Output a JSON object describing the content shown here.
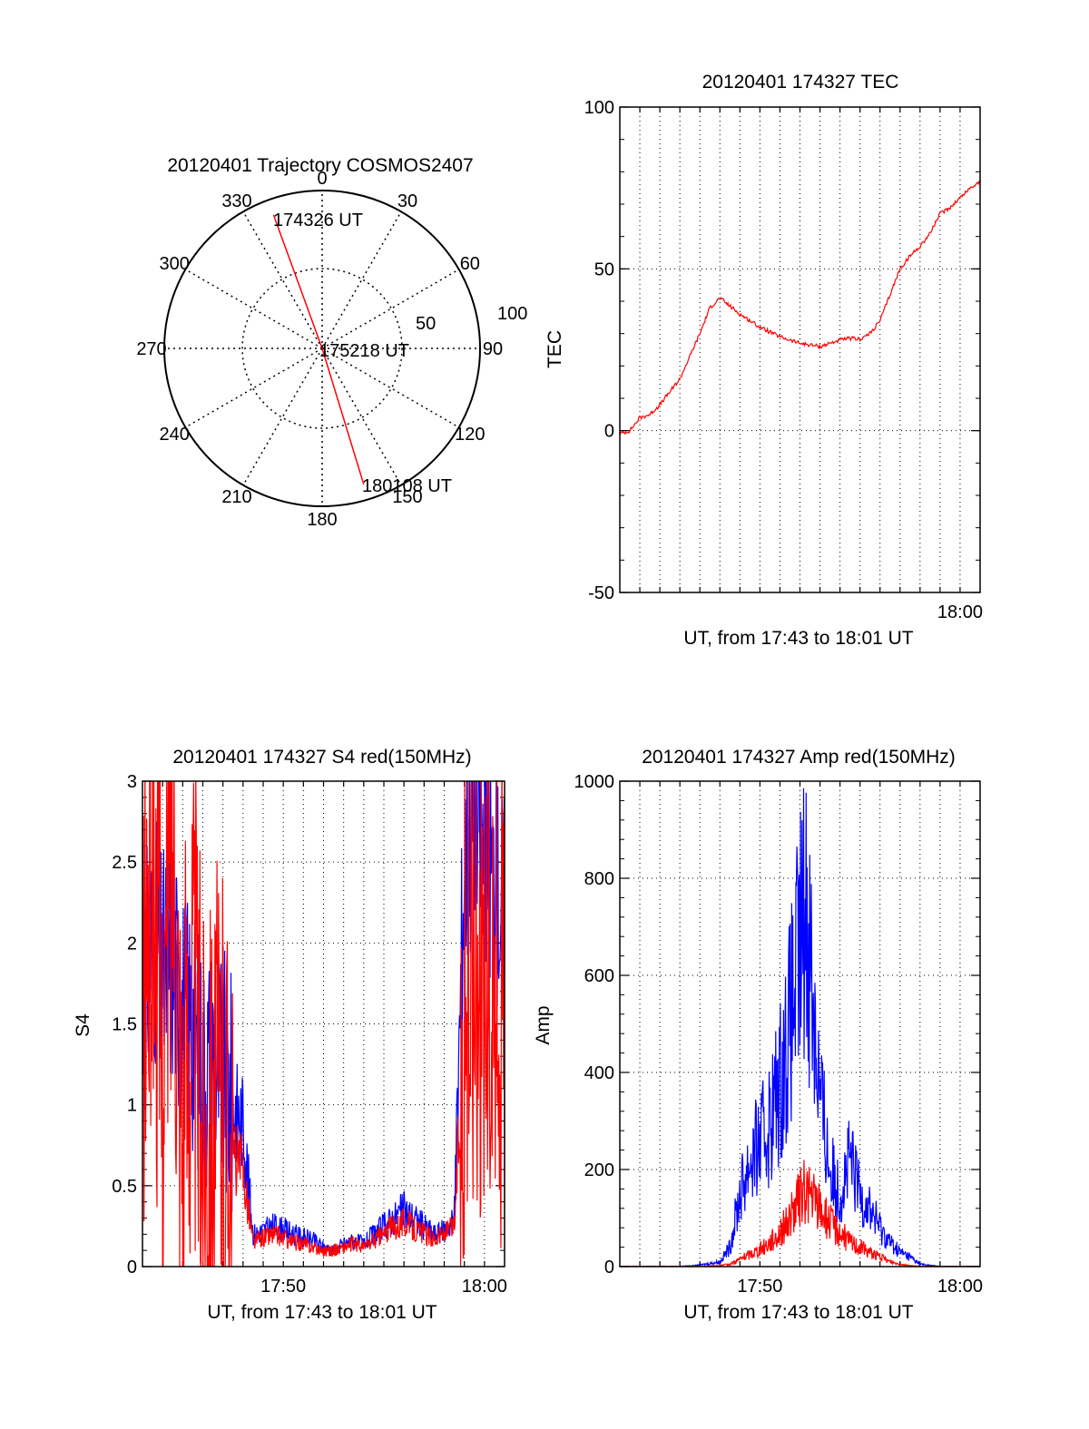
{
  "colors": {
    "red": "#ff0000",
    "blue": "#0000ff",
    "axis": "#000000",
    "grid": "#000000"
  },
  "chart_data": [
    {
      "id": "polar",
      "type": "polar",
      "title": "20120401 Trajectory COSMOS2407",
      "azimuth_labels": [
        "0",
        "30",
        "60",
        "90",
        "120",
        "150",
        "180",
        "210",
        "240",
        "270",
        "300",
        "330"
      ],
      "radial_labels": [
        "50",
        "100"
      ],
      "rlim": [
        0,
        100
      ],
      "grid": true,
      "trajectory": {
        "color": "red",
        "points": [
          {
            "time": "174326 UT",
            "azimuth": 340,
            "radius": 90
          },
          {
            "time": "175218 UT",
            "azimuth": 0,
            "radius": 0
          },
          {
            "time": "180108 UT",
            "azimuth": 163,
            "radius": 90
          }
        ]
      },
      "annotations": [
        "174326 UT",
        "175218 UT",
        "180108 UT"
      ]
    },
    {
      "id": "tec",
      "type": "line",
      "title": "20120401 174327 TEC",
      "xlabel": "UT, from 17:43 to 18:01 UT",
      "ylabel": "TEC",
      "xlim_minutes": [
        0,
        18
      ],
      "ylim": [
        -50,
        100
      ],
      "yticks": [
        "-50",
        "0",
        "50",
        "100"
      ],
      "xticks": [
        {
          "label": "18:00",
          "minute": 17
        }
      ],
      "grid": true,
      "series": [
        {
          "color": "red",
          "x": [
            0.0,
            0.5,
            1.0,
            1.5,
            2.0,
            2.5,
            3.0,
            3.5,
            4.0,
            4.5,
            5.0,
            6.0,
            7.0,
            8.0,
            9.0,
            9.5,
            10.0,
            10.5,
            11.0,
            11.5,
            12.0,
            12.5,
            13.0,
            13.5,
            14.0,
            14.5,
            15.0,
            15.5,
            16.0,
            16.5,
            17.0,
            17.5,
            18.0
          ],
          "y": [
            -1,
            0,
            4,
            5,
            8,
            12,
            16,
            23,
            30,
            38,
            41,
            36,
            32,
            29,
            27,
            26.5,
            26,
            27,
            28,
            28.5,
            28.3,
            30,
            34,
            42,
            50,
            54,
            57,
            61,
            67,
            69,
            72,
            75,
            77
          ]
        }
      ]
    },
    {
      "id": "s4",
      "type": "line",
      "title": "20120401 174327 S4 red(150MHz)",
      "xlabel": "UT, from 17:43 to 18:01 UT",
      "ylabel": "S4",
      "xlim_minutes": [
        0,
        18
      ],
      "ylim": [
        0,
        3
      ],
      "yticks": [
        "0",
        "0.5",
        "1",
        "1.5",
        "2",
        "2.5",
        "3"
      ],
      "xticks": [
        {
          "label": "17:50",
          "minute": 7
        },
        {
          "label": "18:00",
          "minute": 17
        }
      ],
      "grid": true,
      "series": [
        {
          "color": "blue",
          "x": [
            0.0,
            0.5,
            1.0,
            1.5,
            2.0,
            2.5,
            3.0,
            3.5,
            4.0,
            4.5,
            5.0,
            5.5,
            6.0,
            6.5,
            7.0,
            7.5,
            8.0,
            8.5,
            9.0,
            9.5,
            10.0,
            10.5,
            11.0,
            11.5,
            12.0,
            12.5,
            13.0,
            13.5,
            14.0,
            14.5,
            15.0,
            15.5,
            16.0,
            16.5,
            17.0,
            17.5,
            18.0
          ],
          "y": [
            1.6,
            2.1,
            1.8,
            1.9,
            1.6,
            1.5,
            1.2,
            1.3,
            1.2,
            1.0,
            0.9,
            0.2,
            0.22,
            0.25,
            0.23,
            0.2,
            0.18,
            0.16,
            0.12,
            0.1,
            0.14,
            0.16,
            0.14,
            0.2,
            0.25,
            0.3,
            0.35,
            0.3,
            0.25,
            0.2,
            0.22,
            0.3,
            2.5,
            2.8,
            2.6,
            2.4,
            2.2
          ]
        },
        {
          "color": "red",
          "x": [
            0.0,
            0.5,
            1.0,
            1.5,
            2.0,
            2.5,
            3.0,
            3.5,
            4.0,
            4.5,
            5.0,
            5.5,
            6.0,
            6.5,
            7.0,
            7.5,
            8.0,
            8.5,
            9.0,
            9.5,
            10.0,
            10.5,
            11.0,
            11.5,
            12.0,
            12.5,
            13.0,
            13.5,
            14.0,
            14.5,
            15.0,
            15.5,
            16.0,
            16.5,
            17.0,
            17.5,
            18.0
          ],
          "y": [
            1.5,
            2.5,
            1.2,
            2.8,
            0.9,
            1.8,
            0.8,
            1.0,
            0.9,
            0.7,
            0.6,
            0.15,
            0.18,
            0.2,
            0.18,
            0.15,
            0.14,
            0.12,
            0.1,
            0.1,
            0.12,
            0.14,
            0.12,
            0.16,
            0.2,
            0.25,
            0.28,
            0.24,
            0.2,
            0.18,
            0.2,
            0.25,
            1.5,
            2.0,
            1.8,
            1.6,
            1.7
          ]
        }
      ]
    },
    {
      "id": "amp",
      "type": "line",
      "title": "20120401 174327 Amp red(150MHz)",
      "xlabel": "UT, from 17:43 to 18:01 UT",
      "ylabel": "Amp",
      "xlim_minutes": [
        0,
        18
      ],
      "ylim": [
        0,
        1000
      ],
      "yticks": [
        "0",
        "200",
        "400",
        "600",
        "800",
        "1000"
      ],
      "xticks": [
        {
          "label": "17:50",
          "minute": 7
        },
        {
          "label": "18:00",
          "minute": 17
        }
      ],
      "grid": true,
      "series": [
        {
          "color": "blue",
          "x": [
            0.0,
            1.0,
            2.0,
            3.0,
            4.0,
            5.0,
            5.5,
            6.0,
            6.5,
            7.0,
            7.5,
            8.0,
            8.5,
            9.0,
            9.3,
            9.6,
            10.0,
            10.5,
            11.0,
            11.5,
            12.0,
            12.5,
            13.0,
            13.5,
            14.0,
            14.5,
            15.0,
            16.0,
            17.0,
            18.0
          ],
          "y": [
            0,
            0,
            0,
            0,
            3,
            10,
            40,
            150,
            220,
            250,
            300,
            380,
            500,
            650,
            750,
            600,
            350,
            200,
            150,
            220,
            150,
            120,
            80,
            50,
            30,
            20,
            5,
            0,
            0,
            0
          ]
        },
        {
          "color": "red",
          "x": [
            0.0,
            1.0,
            2.0,
            3.0,
            4.0,
            5.0,
            5.5,
            6.0,
            6.5,
            7.0,
            7.5,
            8.0,
            8.5,
            9.0,
            9.3,
            9.6,
            10.0,
            10.5,
            11.0,
            11.5,
            12.0,
            12.5,
            13.0,
            13.5,
            14.0,
            14.5,
            15.0,
            16.0,
            17.0,
            18.0
          ],
          "y": [
            0,
            0,
            0,
            0,
            0,
            2,
            5,
            15,
            25,
            35,
            50,
            70,
            100,
            140,
            160,
            140,
            120,
            90,
            70,
            50,
            40,
            30,
            20,
            10,
            5,
            2,
            0,
            0,
            0,
            0
          ]
        }
      ]
    }
  ]
}
